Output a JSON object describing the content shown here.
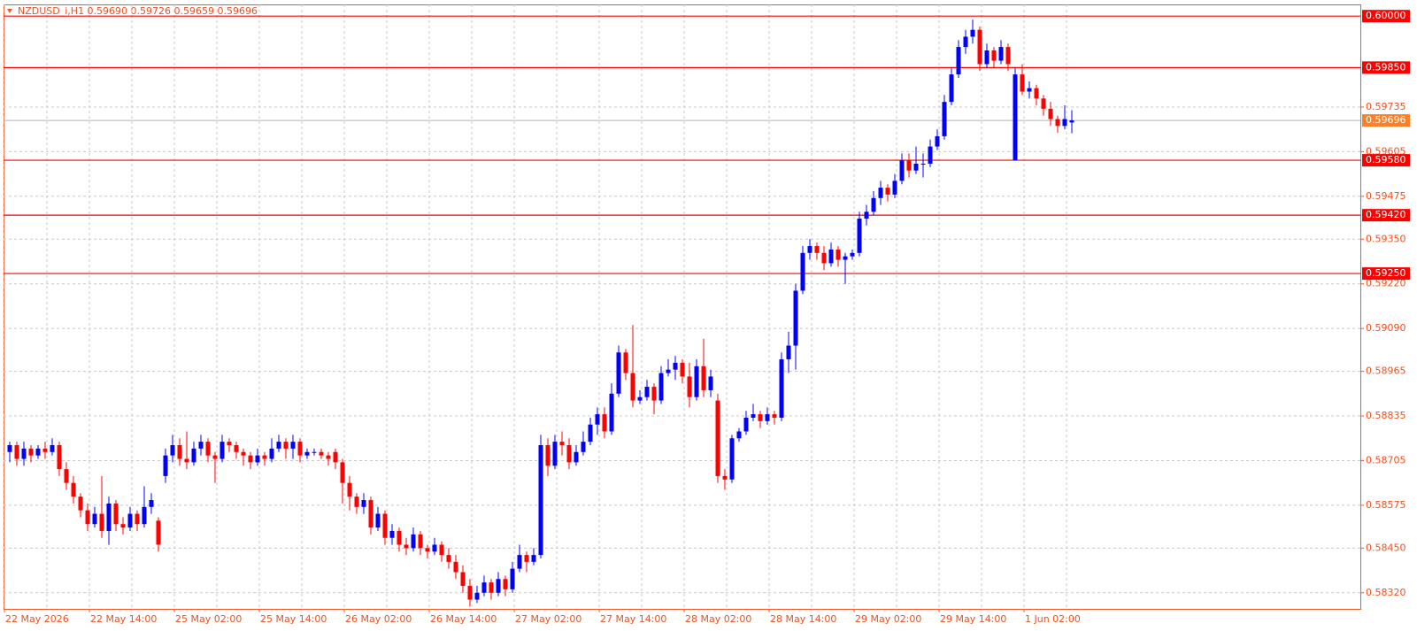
{
  "chart_data": {
    "type": "candlestick",
    "title": "NZDUSD_i,H1  0.59690 0.59726 0.59659 0.59696",
    "up_color": "#0000ff",
    "down_color": "#ff0000",
    "level_color": "#ff0000",
    "bid_color": "#ff7f27",
    "grid": true,
    "ylim": [
      0.58273,
      0.60034
    ],
    "yticks": [
      {
        "value": 0.59735,
        "label": "0.59735"
      },
      {
        "value": 0.59605,
        "label": "0.59605"
      },
      {
        "value": 0.59475,
        "label": "0.59475"
      },
      {
        "value": 0.5935,
        "label": "0.59350"
      },
      {
        "value": 0.5922,
        "label": "0.59220"
      },
      {
        "value": 0.5909,
        "label": "0.59090"
      },
      {
        "value": 0.58965,
        "label": "0.58965"
      },
      {
        "value": 0.58835,
        "label": "0.58835"
      },
      {
        "value": 0.58705,
        "label": "0.58705"
      },
      {
        "value": 0.58575,
        "label": "0.58575"
      },
      {
        "value": 0.5845,
        "label": "0.58450"
      },
      {
        "value": 0.5832,
        "label": "0.58320"
      }
    ],
    "levels": [
      {
        "value": 0.6,
        "label": "0.60000"
      },
      {
        "value": 0.5985,
        "label": "0.59850"
      },
      {
        "value": 0.5958,
        "label": "0.59580"
      },
      {
        "value": 0.5942,
        "label": "0.59420"
      },
      {
        "value": 0.5925,
        "label": "0.59250"
      }
    ],
    "bid": {
      "value": 0.59696,
      "label": "0.59696"
    },
    "xticks": [
      {
        "value": 0,
        "label": "22 May 2026"
      },
      {
        "value": 12,
        "label": "22 May 14:00"
      },
      {
        "value": 24,
        "label": "25 May 02:00"
      },
      {
        "value": 36,
        "label": "25 May 14:00"
      },
      {
        "value": 48,
        "label": "26 May 02:00"
      },
      {
        "value": 60,
        "label": "26 May 14:00"
      },
      {
        "value": 72,
        "label": "27 May 02:00"
      },
      {
        "value": 84,
        "label": "27 May 14:00"
      },
      {
        "value": 96,
        "label": "28 May 02:00"
      },
      {
        "value": 108,
        "label": "28 May 14:00"
      },
      {
        "value": 120,
        "label": "29 May 02:00"
      },
      {
        "value": 132,
        "label": "29 May 14:00"
      },
      {
        "value": 144,
        "label": "1 Jun 02:00"
      }
    ],
    "ohlc": [
      [
        0.5873,
        0.5876,
        0.587,
        0.5875
      ],
      [
        0.5875,
        0.5876,
        0.5869,
        0.5871
      ],
      [
        0.5871,
        0.5876,
        0.5869,
        0.5874
      ],
      [
        0.5874,
        0.5875,
        0.587,
        0.5872
      ],
      [
        0.5872,
        0.5875,
        0.5871,
        0.5874
      ],
      [
        0.5874,
        0.5876,
        0.5871,
        0.5873
      ],
      [
        0.5873,
        0.5877,
        0.5872,
        0.5875
      ],
      [
        0.5875,
        0.5876,
        0.5866,
        0.5868
      ],
      [
        0.5868,
        0.587,
        0.5862,
        0.5864
      ],
      [
        0.5864,
        0.5866,
        0.5858,
        0.586
      ],
      [
        0.586,
        0.5861,
        0.5854,
        0.5856
      ],
      [
        0.5856,
        0.5858,
        0.585,
        0.5852
      ],
      [
        0.5852,
        0.5857,
        0.5851,
        0.5855
      ],
      [
        0.5855,
        0.5866,
        0.5848,
        0.585
      ],
      [
        0.585,
        0.586,
        0.5846,
        0.5858
      ],
      [
        0.5858,
        0.5859,
        0.585,
        0.5852
      ],
      [
        0.5852,
        0.5854,
        0.5849,
        0.5851
      ],
      [
        0.5851,
        0.5857,
        0.585,
        0.5855
      ],
      [
        0.5855,
        0.5856,
        0.585,
        0.5852
      ],
      [
        0.5852,
        0.5863,
        0.5851,
        0.5857
      ],
      [
        0.5857,
        0.5861,
        0.5855,
        0.5859
      ],
      [
        0.5853,
        0.5854,
        0.5844,
        0.5846
      ],
      [
        0.5866,
        0.5874,
        0.5864,
        0.5872
      ],
      [
        0.5872,
        0.5878,
        0.587,
        0.5875
      ],
      [
        0.5875,
        0.5877,
        0.5869,
        0.5871
      ],
      [
        0.5871,
        0.5879,
        0.5868,
        0.587
      ],
      [
        0.587,
        0.5876,
        0.5869,
        0.5874
      ],
      [
        0.5874,
        0.5878,
        0.5872,
        0.5876
      ],
      [
        0.5876,
        0.5877,
        0.587,
        0.5872
      ],
      [
        0.5872,
        0.5873,
        0.5864,
        0.5871
      ],
      [
        0.5871,
        0.5878,
        0.587,
        0.5876
      ],
      [
        0.5876,
        0.5877,
        0.5873,
        0.5875
      ],
      [
        0.5875,
        0.5876,
        0.5871,
        0.5873
      ],
      [
        0.5873,
        0.5874,
        0.5869,
        0.5872
      ],
      [
        0.5872,
        0.5873,
        0.5868,
        0.587
      ],
      [
        0.587,
        0.5874,
        0.5869,
        0.5872
      ],
      [
        0.5872,
        0.5873,
        0.5869,
        0.5871
      ],
      [
        0.5871,
        0.5877,
        0.587,
        0.5874
      ],
      [
        0.5874,
        0.5878,
        0.5873,
        0.5876
      ],
      [
        0.5876,
        0.5877,
        0.5871,
        0.5874
      ],
      [
        0.5874,
        0.5878,
        0.5871,
        0.5876
      ],
      [
        0.5876,
        0.5877,
        0.587,
        0.5872
      ],
      [
        0.5872,
        0.5874,
        0.5871,
        0.5873
      ],
      [
        0.5873,
        0.5874,
        0.5872,
        0.5873
      ],
      [
        0.5873,
        0.5874,
        0.5871,
        0.5872
      ],
      [
        0.5872,
        0.5873,
        0.5869,
        0.5871
      ],
      [
        0.5873,
        0.5874,
        0.5868,
        0.587
      ],
      [
        0.587,
        0.5871,
        0.5858,
        0.5864
      ],
      [
        0.5864,
        0.5866,
        0.5856,
        0.586
      ],
      [
        0.586,
        0.5861,
        0.5855,
        0.5857
      ],
      [
        0.5857,
        0.5861,
        0.5855,
        0.5859
      ],
      [
        0.5859,
        0.586,
        0.5849,
        0.5851
      ],
      [
        0.5851,
        0.5857,
        0.585,
        0.5855
      ],
      [
        0.5855,
        0.5856,
        0.5846,
        0.5848
      ],
      [
        0.5848,
        0.5852,
        0.5846,
        0.585
      ],
      [
        0.585,
        0.5851,
        0.5844,
        0.5846
      ],
      [
        0.5846,
        0.5848,
        0.5843,
        0.5845
      ],
      [
        0.5845,
        0.5851,
        0.5844,
        0.5849
      ],
      [
        0.5849,
        0.585,
        0.5843,
        0.5845
      ],
      [
        0.5845,
        0.5846,
        0.5842,
        0.5844
      ],
      [
        0.5844,
        0.5848,
        0.5843,
        0.5846
      ],
      [
        0.5846,
        0.5847,
        0.5841,
        0.5843
      ],
      [
        0.5843,
        0.5845,
        0.5839,
        0.5841
      ],
      [
        0.5841,
        0.5843,
        0.5836,
        0.5838
      ],
      [
        0.5838,
        0.584,
        0.5832,
        0.5834
      ],
      [
        0.5834,
        0.5836,
        0.5828,
        0.583
      ],
      [
        0.583,
        0.5834,
        0.5829,
        0.5832
      ],
      [
        0.5832,
        0.5837,
        0.5831,
        0.5835
      ],
      [
        0.5835,
        0.5836,
        0.583,
        0.5832
      ],
      [
        0.5832,
        0.5838,
        0.5831,
        0.5836
      ],
      [
        0.5836,
        0.5837,
        0.5831,
        0.5833
      ],
      [
        0.5833,
        0.5841,
        0.5832,
        0.5839
      ],
      [
        0.5839,
        0.5846,
        0.5838,
        0.5843
      ],
      [
        0.5843,
        0.5844,
        0.5838,
        0.5841
      ],
      [
        0.5841,
        0.5845,
        0.584,
        0.5843
      ],
      [
        0.5843,
        0.5878,
        0.5842,
        0.5875
      ],
      [
        0.5875,
        0.5877,
        0.5866,
        0.5869
      ],
      [
        0.5869,
        0.5878,
        0.5868,
        0.5876
      ],
      [
        0.5876,
        0.5879,
        0.5872,
        0.5875
      ],
      [
        0.5875,
        0.5877,
        0.5868,
        0.587
      ],
      [
        0.587,
        0.5875,
        0.5869,
        0.5873
      ],
      [
        0.5873,
        0.5879,
        0.5872,
        0.5876
      ],
      [
        0.5876,
        0.5883,
        0.5875,
        0.5881
      ],
      [
        0.5881,
        0.5886,
        0.5878,
        0.5884
      ],
      [
        0.5884,
        0.5886,
        0.5877,
        0.5879
      ],
      [
        0.5879,
        0.5893,
        0.5878,
        0.589
      ],
      [
        0.589,
        0.5904,
        0.5889,
        0.5902
      ],
      [
        0.5902,
        0.5903,
        0.5894,
        0.5896
      ],
      [
        0.5896,
        0.591,
        0.5886,
        0.5888
      ],
      [
        0.5888,
        0.5891,
        0.5887,
        0.5889
      ],
      [
        0.5889,
        0.5894,
        0.5888,
        0.5892
      ],
      [
        0.5892,
        0.5893,
        0.5884,
        0.5888
      ],
      [
        0.5888,
        0.5898,
        0.5887,
        0.5896
      ],
      [
        0.5896,
        0.59,
        0.5895,
        0.5897
      ],
      [
        0.5897,
        0.5901,
        0.5894,
        0.5899
      ],
      [
        0.5899,
        0.59,
        0.5893,
        0.5895
      ],
      [
        0.5895,
        0.5899,
        0.5886,
        0.5889
      ],
      [
        0.5889,
        0.59,
        0.5888,
        0.5898
      ],
      [
        0.5898,
        0.5906,
        0.5889,
        0.5891
      ],
      [
        0.5891,
        0.5897,
        0.5889,
        0.5895
      ],
      [
        0.5888,
        0.589,
        0.5864,
        0.5866
      ],
      [
        0.5866,
        0.5868,
        0.5862,
        0.5865
      ],
      [
        0.5865,
        0.5878,
        0.5864,
        0.5877
      ],
      [
        0.5877,
        0.588,
        0.5876,
        0.5879
      ],
      [
        0.5879,
        0.5885,
        0.5878,
        0.5883
      ],
      [
        0.5883,
        0.5887,
        0.5882,
        0.5884
      ],
      [
        0.5884,
        0.5885,
        0.588,
        0.5882
      ],
      [
        0.5882,
        0.5886,
        0.5881,
        0.5884
      ],
      [
        0.5884,
        0.5885,
        0.5881,
        0.5883
      ],
      [
        0.5883,
        0.5902,
        0.5882,
        0.59
      ],
      [
        0.59,
        0.5908,
        0.5896,
        0.5904
      ],
      [
        0.5904,
        0.5922,
        0.5897,
        0.592
      ],
      [
        0.592,
        0.5933,
        0.5919,
        0.5931
      ],
      [
        0.5931,
        0.5935,
        0.5929,
        0.5933
      ],
      [
        0.5933,
        0.5934,
        0.5929,
        0.5931
      ],
      [
        0.5931,
        0.5933,
        0.5926,
        0.5928
      ],
      [
        0.5928,
        0.5934,
        0.5927,
        0.5932
      ],
      [
        0.5932,
        0.5933,
        0.5927,
        0.5929
      ],
      [
        0.5929,
        0.5931,
        0.5922,
        0.593
      ],
      [
        0.593,
        0.5932,
        0.5929,
        0.5931
      ],
      [
        0.5931,
        0.5943,
        0.593,
        0.5941
      ],
      [
        0.5941,
        0.5945,
        0.5939,
        0.5943
      ],
      [
        0.5943,
        0.5949,
        0.5942,
        0.5947
      ],
      [
        0.5947,
        0.5952,
        0.5945,
        0.595
      ],
      [
        0.595,
        0.5951,
        0.5946,
        0.5948
      ],
      [
        0.5948,
        0.5954,
        0.5947,
        0.5952
      ],
      [
        0.5952,
        0.596,
        0.5951,
        0.5958
      ],
      [
        0.5958,
        0.596,
        0.5953,
        0.5955
      ],
      [
        0.5955,
        0.5962,
        0.5954,
        0.5957
      ],
      [
        0.5957,
        0.596,
        0.5953,
        0.5957
      ],
      [
        0.5957,
        0.5964,
        0.5956,
        0.5962
      ],
      [
        0.5962,
        0.5967,
        0.5961,
        0.5965
      ],
      [
        0.5965,
        0.5977,
        0.5964,
        0.5975
      ],
      [
        0.5975,
        0.5985,
        0.5974,
        0.5983
      ],
      [
        0.5983,
        0.5993,
        0.5982,
        0.5991
      ],
      [
        0.5991,
        0.5996,
        0.5989,
        0.5994
      ],
      [
        0.5994,
        0.5999,
        0.5992,
        0.5996
      ],
      [
        0.5996,
        0.5997,
        0.5984,
        0.5986
      ],
      [
        0.5986,
        0.5992,
        0.5985,
        0.599
      ],
      [
        0.599,
        0.5991,
        0.5985,
        0.5987
      ],
      [
        0.5987,
        0.5993,
        0.5986,
        0.5991
      ],
      [
        0.5991,
        0.5992,
        0.5984,
        0.5986
      ],
      [
        0.5958,
        0.5985,
        0.5958,
        0.5983
      ],
      [
        0.5983,
        0.5986,
        0.5977,
        0.5978
      ],
      [
        0.5978,
        0.5981,
        0.5976,
        0.5979
      ],
      [
        0.5979,
        0.598,
        0.5974,
        0.5976
      ],
      [
        0.5976,
        0.5977,
        0.5971,
        0.5973
      ],
      [
        0.5973,
        0.5975,
        0.5968,
        0.597
      ],
      [
        0.597,
        0.5971,
        0.5966,
        0.5968
      ],
      [
        0.5968,
        0.5974,
        0.5967,
        0.597
      ],
      [
        0.5969,
        0.59726,
        0.59659,
        0.59696
      ]
    ]
  }
}
